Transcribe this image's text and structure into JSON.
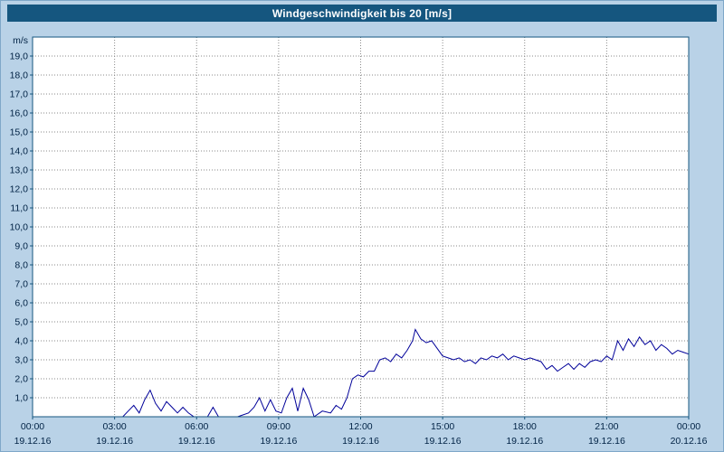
{
  "title": "Windgeschwindigkeit bis 20 [m/s]",
  "colors": {
    "titlebar_bg": "#15567f",
    "page_bg": "#b9d2e7",
    "plot_bg": "#ffffff",
    "plot_border": "#15567f",
    "grid": "#8a8a8a",
    "line": "#000099",
    "text": "#002244"
  },
  "chart_data": {
    "type": "line",
    "title": "Windgeschwindigkeit bis 20 [m/s]",
    "xlabel": "",
    "ylabel": "m/s",
    "xlim": [
      0,
      24
    ],
    "ylim": [
      0,
      20
    ],
    "grid": true,
    "legend": "none",
    "ytick_values": [
      1,
      2,
      3,
      4,
      5,
      6,
      7,
      8,
      9,
      10,
      11,
      12,
      13,
      14,
      15,
      16,
      17,
      18,
      19
    ],
    "ytick_labels": [
      "1,0",
      "2,0",
      "3,0",
      "4,0",
      "5,0",
      "6,0",
      "7,0",
      "8,0",
      "9,0",
      "10,0",
      "11,0",
      "12,0",
      "13,0",
      "14,0",
      "15,0",
      "16,0",
      "17,0",
      "18,0",
      "19,0"
    ],
    "xticks": [
      {
        "hour": 0,
        "time": "00:00",
        "date": "19.12.16"
      },
      {
        "hour": 3,
        "time": "03:00",
        "date": "19.12.16"
      },
      {
        "hour": 6,
        "time": "06:00",
        "date": "19.12.16"
      },
      {
        "hour": 9,
        "time": "09:00",
        "date": "19.12.16"
      },
      {
        "hour": 12,
        "time": "12:00",
        "date": "19.12.16"
      },
      {
        "hour": 15,
        "time": "15:00",
        "date": "19.12.16"
      },
      {
        "hour": 18,
        "time": "18:00",
        "date": "19.12.16"
      },
      {
        "hour": 21,
        "time": "21:00",
        "date": "19.12.16"
      },
      {
        "hour": 24,
        "time": "00:00",
        "date": "20.12.16"
      }
    ],
    "series": [
      {
        "name": "Windgeschwindigkeit",
        "points": [
          [
            0,
            0
          ],
          [
            0.5,
            0
          ],
          [
            1,
            0
          ],
          [
            1.5,
            0
          ],
          [
            2,
            0
          ],
          [
            2.5,
            0
          ],
          [
            3,
            0
          ],
          [
            3.3,
            0
          ],
          [
            3.5,
            0.3
          ],
          [
            3.7,
            0.6
          ],
          [
            3.9,
            0.2
          ],
          [
            4.1,
            0.9
          ],
          [
            4.3,
            1.4
          ],
          [
            4.5,
            0.7
          ],
          [
            4.7,
            0.3
          ],
          [
            4.9,
            0.8
          ],
          [
            5.1,
            0.5
          ],
          [
            5.3,
            0.2
          ],
          [
            5.5,
            0.5
          ],
          [
            5.7,
            0.2
          ],
          [
            5.9,
            0
          ],
          [
            6.1,
            0
          ],
          [
            6.4,
            0
          ],
          [
            6.6,
            0.5
          ],
          [
            6.8,
            0
          ],
          [
            7.0,
            0
          ],
          [
            7.5,
            0
          ],
          [
            7.9,
            0.2
          ],
          [
            8.1,
            0.5
          ],
          [
            8.3,
            1.0
          ],
          [
            8.5,
            0.3
          ],
          [
            8.7,
            0.9
          ],
          [
            8.9,
            0.3
          ],
          [
            9.1,
            0.2
          ],
          [
            9.3,
            1.0
          ],
          [
            9.5,
            1.5
          ],
          [
            9.7,
            0.3
          ],
          [
            9.9,
            1.5
          ],
          [
            10.1,
            0.9
          ],
          [
            10.3,
            0
          ],
          [
            10.6,
            0.3
          ],
          [
            10.9,
            0.2
          ],
          [
            11.1,
            0.6
          ],
          [
            11.3,
            0.4
          ],
          [
            11.5,
            1.0
          ],
          [
            11.7,
            2.0
          ],
          [
            11.9,
            2.2
          ],
          [
            12.1,
            2.1
          ],
          [
            12.3,
            2.4
          ],
          [
            12.5,
            2.4
          ],
          [
            12.7,
            3.0
          ],
          [
            12.9,
            3.1
          ],
          [
            13.1,
            2.9
          ],
          [
            13.3,
            3.3
          ],
          [
            13.5,
            3.1
          ],
          [
            13.7,
            3.5
          ],
          [
            13.9,
            4.0
          ],
          [
            14.0,
            4.6
          ],
          [
            14.2,
            4.1
          ],
          [
            14.4,
            3.9
          ],
          [
            14.6,
            4.0
          ],
          [
            14.8,
            3.6
          ],
          [
            15.0,
            3.2
          ],
          [
            15.2,
            3.1
          ],
          [
            15.4,
            3.0
          ],
          [
            15.6,
            3.1
          ],
          [
            15.8,
            2.9
          ],
          [
            16.0,
            3.0
          ],
          [
            16.2,
            2.8
          ],
          [
            16.4,
            3.1
          ],
          [
            16.6,
            3.0
          ],
          [
            16.8,
            3.2
          ],
          [
            17.0,
            3.1
          ],
          [
            17.2,
            3.3
          ],
          [
            17.4,
            3.0
          ],
          [
            17.6,
            3.2
          ],
          [
            17.8,
            3.1
          ],
          [
            18.0,
            3.0
          ],
          [
            18.2,
            3.1
          ],
          [
            18.4,
            3.0
          ],
          [
            18.6,
            2.9
          ],
          [
            18.8,
            2.5
          ],
          [
            19.0,
            2.7
          ],
          [
            19.2,
            2.4
          ],
          [
            19.4,
            2.6
          ],
          [
            19.6,
            2.8
          ],
          [
            19.8,
            2.5
          ],
          [
            20.0,
            2.8
          ],
          [
            20.2,
            2.6
          ],
          [
            20.4,
            2.9
          ],
          [
            20.6,
            3.0
          ],
          [
            20.8,
            2.9
          ],
          [
            21.0,
            3.2
          ],
          [
            21.2,
            3.0
          ],
          [
            21.4,
            4.0
          ],
          [
            21.6,
            3.5
          ],
          [
            21.8,
            4.1
          ],
          [
            22.0,
            3.7
          ],
          [
            22.2,
            4.2
          ],
          [
            22.4,
            3.8
          ],
          [
            22.6,
            4.0
          ],
          [
            22.8,
            3.5
          ],
          [
            23.0,
            3.8
          ],
          [
            23.2,
            3.6
          ],
          [
            23.4,
            3.3
          ],
          [
            23.6,
            3.5
          ],
          [
            23.8,
            3.4
          ],
          [
            24.0,
            3.3
          ]
        ]
      }
    ]
  }
}
